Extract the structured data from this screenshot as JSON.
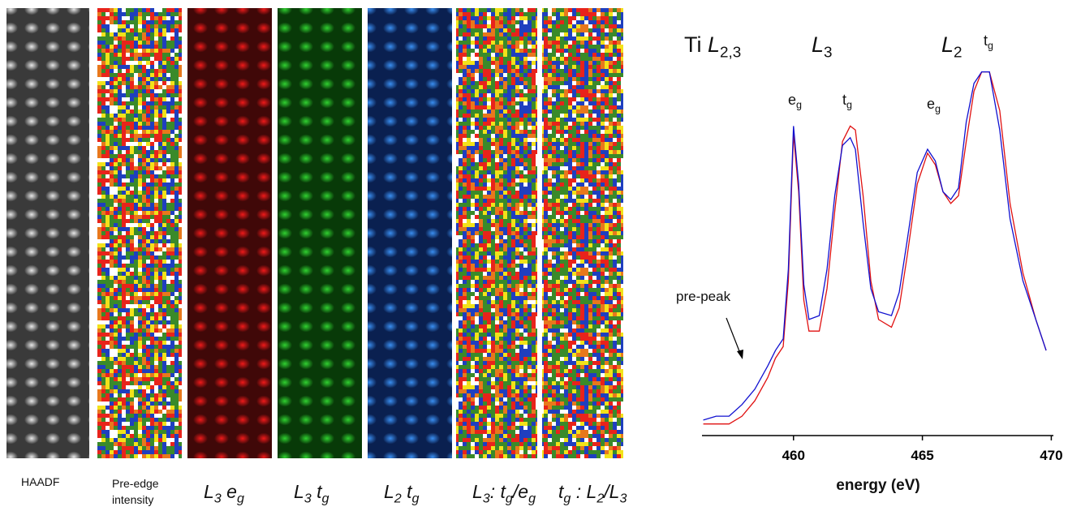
{
  "maps": [
    {
      "label": [
        {
          "text": "HAADF"
        }
      ]
    },
    {
      "label": [
        {
          "text": "Pre-edge intensity"
        }
      ]
    },
    {
      "label": [
        {
          "text": "L",
          "sub": "3"
        },
        {
          "text": " e",
          "sub": "g"
        }
      ]
    },
    {
      "label": [
        {
          "text": "L",
          "sub": "3"
        },
        {
          "text": " t",
          "sub": "g"
        }
      ]
    },
    {
      "label": [
        {
          "text": "L",
          "sub": "2"
        },
        {
          "text": " t",
          "sub": "g"
        }
      ]
    },
    {
      "label": [
        {
          "text": "L",
          "sub": "3"
        },
        {
          "text": ": t",
          "sub": "g"
        },
        {
          "text": "/e",
          "sub": "g"
        }
      ]
    },
    {
      "label": [
        {
          "text": "t",
          "sub": "g"
        },
        {
          "text": " : L",
          "sub": "2"
        },
        {
          "text": "/L",
          "sub": "3"
        }
      ]
    }
  ],
  "chart_data": {
    "type": "line",
    "x_label": "energy (eV)",
    "x": [
      456.5,
      457,
      457.5,
      458,
      458.5,
      459,
      459.3,
      459.6,
      459.8,
      460,
      460.2,
      460.4,
      460.6,
      461,
      461.3,
      461.6,
      461.9,
      462.2,
      462.4,
      462.7,
      463,
      463.3,
      463.8,
      464.1,
      464.4,
      464.8,
      465.2,
      465.5,
      465.8,
      466.1,
      466.4,
      466.7,
      467,
      467.3,
      467.6,
      468,
      468.4,
      468.9,
      469.4,
      469.8
    ],
    "series": [
      {
        "color": "#e01010",
        "values": [
          0.03,
          0.03,
          0.03,
          0.05,
          0.09,
          0.15,
          0.2,
          0.23,
          0.4,
          0.78,
          0.63,
          0.35,
          0.27,
          0.27,
          0.38,
          0.58,
          0.76,
          0.8,
          0.79,
          0.62,
          0.4,
          0.3,
          0.28,
          0.33,
          0.46,
          0.65,
          0.73,
          0.7,
          0.63,
          0.6,
          0.62,
          0.76,
          0.89,
          0.94,
          0.94,
          0.84,
          0.6,
          0.42,
          0.3,
          0.22
        ]
      },
      {
        "color": "#1010d0",
        "values": [
          0.04,
          0.05,
          0.05,
          0.08,
          0.12,
          0.18,
          0.22,
          0.25,
          0.43,
          0.8,
          0.65,
          0.39,
          0.3,
          0.31,
          0.43,
          0.62,
          0.75,
          0.77,
          0.74,
          0.55,
          0.38,
          0.32,
          0.31,
          0.37,
          0.5,
          0.68,
          0.74,
          0.71,
          0.63,
          0.61,
          0.64,
          0.81,
          0.91,
          0.94,
          0.94,
          0.79,
          0.56,
          0.4,
          0.3,
          0.22
        ]
      }
    ],
    "xlim": [
      456.45,
      470.05
    ],
    "ylim": [
      0,
      1
    ],
    "xticks": [
      460,
      465,
      470
    ],
    "annotations": [
      {
        "text": "Ti ",
        "italic": "L",
        "sub": "2,3"
      },
      {
        "italic": "L",
        "sub": "3"
      },
      {
        "italic": "L",
        "sub": "2"
      },
      {
        "text": "e",
        "sub": "g"
      },
      {
        "text": "t",
        "sub": "g"
      },
      {
        "text": "e",
        "sub": "g"
      },
      {
        "text": "t",
        "sub": "g"
      },
      {
        "text": "pre-peak"
      }
    ]
  }
}
